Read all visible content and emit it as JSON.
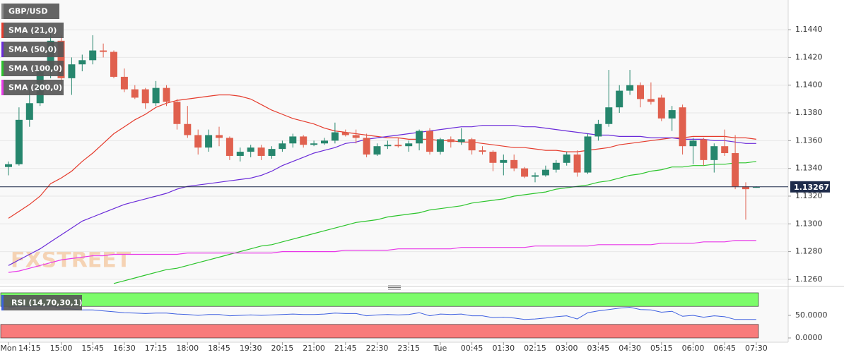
{
  "chart_data": [
    {
      "type": "candlestick",
      "title": "GBP/USD",
      "categories": [
        "Mon",
        null,
        "14:15",
        null,
        null,
        "15:00",
        null,
        null,
        "15:45",
        null,
        null,
        "16:30",
        null,
        null,
        "17:15",
        null,
        null,
        "18:00",
        null,
        null,
        "18:45",
        null,
        null,
        "19:30",
        null,
        null,
        "20:15",
        null,
        null,
        "21:00",
        null,
        null,
        "21:45",
        null,
        null,
        "22:30",
        null,
        null,
        "23:15",
        null,
        null,
        "Tue",
        null,
        null,
        "00:45",
        null,
        null,
        "01:30",
        null,
        null,
        "02:15",
        null,
        null,
        "03:00",
        null,
        null,
        "03:45",
        null,
        null,
        "04:30",
        null,
        null,
        "05:15",
        null,
        null,
        "06:00",
        null,
        null,
        "06:45",
        null,
        null,
        "07:30"
      ],
      "open": [
        1.1341,
        1.1343,
        1.1375,
        1.1387,
        1.141,
        1.1432,
        1.1405,
        1.1415,
        1.1418,
        1.1425,
        1.1424,
        1.1406,
        1.1397,
        1.1397,
        1.1387,
        1.1398,
        1.1388,
        1.1372,
        1.1364,
        1.1355,
        1.1364,
        1.1362,
        1.1349,
        1.1352,
        1.1355,
        1.1349,
        1.1354,
        1.1358,
        1.1363,
        1.1357,
        1.1358,
        1.136,
        1.1366,
        1.1364,
        1.1362,
        1.135,
        1.1356,
        1.1357,
        1.1356,
        1.1358,
        1.1367,
        1.1352,
        1.1361,
        1.1359,
        1.1361,
        1.1353,
        1.1352,
        1.1344,
        1.1346,
        1.134,
        1.1334,
        1.1335,
        1.1339,
        1.1344,
        1.135,
        1.1337,
        1.1363,
        1.1372,
        1.1384,
        1.1396,
        1.14,
        1.139,
        1.1391,
        1.1376,
        1.1384,
        1.1356,
        1.1361,
        1.1346,
        1.1356,
        1.1351,
        1.1327,
        1.1326
      ],
      "high": [
        1.1345,
        1.1384,
        1.14,
        1.1415,
        1.144,
        1.1436,
        1.142,
        1.1422,
        1.1436,
        1.143,
        1.1425,
        1.1412,
        1.14,
        1.1398,
        1.1403,
        1.14,
        1.139,
        1.1385,
        1.1368,
        1.1368,
        1.137,
        1.1363,
        1.1355,
        1.1357,
        1.1357,
        1.1356,
        1.136,
        1.1365,
        1.1364,
        1.136,
        1.1362,
        1.1373,
        1.1368,
        1.1368,
        1.1365,
        1.1358,
        1.136,
        1.1362,
        1.136,
        1.1368,
        1.1369,
        1.1362,
        1.1363,
        1.1369,
        1.1362,
        1.1356,
        1.1353,
        1.135,
        1.135,
        1.1341,
        1.1337,
        1.1342,
        1.1346,
        1.1352,
        1.1353,
        1.1365,
        1.1375,
        1.1411,
        1.14,
        1.1411,
        1.1402,
        1.1402,
        1.1393,
        1.1385,
        1.1386,
        1.1362,
        1.1362,
        1.1358,
        1.1368,
        1.1364,
        1.133,
        1.1327
      ],
      "low": [
        1.1335,
        1.1342,
        1.137,
        1.1385,
        1.1405,
        1.14,
        1.1393,
        1.141,
        1.1415,
        1.142,
        1.1405,
        1.1395,
        1.139,
        1.1383,
        1.1385,
        1.1385,
        1.1368,
        1.1362,
        1.135,
        1.1352,
        1.1356,
        1.1346,
        1.1345,
        1.1348,
        1.1346,
        1.1347,
        1.1352,
        1.1355,
        1.1355,
        1.1356,
        1.1357,
        1.1358,
        1.1363,
        1.1358,
        1.1348,
        1.1349,
        1.1354,
        1.1355,
        1.1352,
        1.1353,
        1.135,
        1.135,
        1.1355,
        1.1357,
        1.135,
        1.135,
        1.1338,
        1.1335,
        1.1338,
        1.1333,
        1.133,
        1.1334,
        1.1337,
        1.1342,
        1.1334,
        1.1336,
        1.136,
        1.137,
        1.138,
        1.1393,
        1.1384,
        1.1386,
        1.1374,
        1.1367,
        1.135,
        1.1343,
        1.1342,
        1.1337,
        1.1349,
        1.1325,
        1.1303,
        1.1326
      ],
      "close": [
        1.1343,
        1.1375,
        1.1387,
        1.141,
        1.1432,
        1.1405,
        1.1415,
        1.1418,
        1.1425,
        1.1424,
        1.1406,
        1.1397,
        1.1391,
        1.1387,
        1.1398,
        1.1388,
        1.1372,
        1.1364,
        1.1355,
        1.1364,
        1.1362,
        1.1349,
        1.1352,
        1.1355,
        1.1349,
        1.1354,
        1.1358,
        1.1363,
        1.1357,
        1.1358,
        1.136,
        1.1366,
        1.1364,
        1.1362,
        1.135,
        1.1356,
        1.1357,
        1.1356,
        1.1358,
        1.1367,
        1.1352,
        1.1361,
        1.1359,
        1.1361,
        1.1353,
        1.1352,
        1.1344,
        1.1346,
        1.134,
        1.1334,
        1.1335,
        1.1339,
        1.1344,
        1.135,
        1.1337,
        1.1363,
        1.1372,
        1.1384,
        1.1396,
        1.14,
        1.139,
        1.1388,
        1.1376,
        1.1382,
        1.1356,
        1.136,
        1.1346,
        1.1356,
        1.1351,
        1.1327,
        1.1325,
        1.13267
      ],
      "up_color": "#26866d",
      "down_color": "#e0604e",
      "lines": [
        {
          "name": "SMA (21,0)",
          "color": "#e53b2c",
          "values": [
            1.1304,
            1.1309,
            1.1314,
            1.132,
            1.1329,
            1.1333,
            1.1338,
            1.1345,
            1.1351,
            1.1358,
            1.1365,
            1.137,
            1.1375,
            1.1379,
            1.1384,
            1.1387,
            1.1389,
            1.139,
            1.1391,
            1.1392,
            1.1393,
            1.1393,
            1.1392,
            1.139,
            1.1386,
            1.1382,
            1.1379,
            1.1376,
            1.1374,
            1.1372,
            1.1369,
            1.1367,
            1.1366,
            1.1365,
            1.1364,
            1.1363,
            1.1362,
            1.1362,
            1.1361,
            1.1361,
            1.1361,
            1.136,
            1.136,
            1.1359,
            1.1359,
            1.1358,
            1.1357,
            1.1356,
            1.1355,
            1.1355,
            1.1354,
            1.1353,
            1.1353,
            1.1352,
            1.1352,
            1.1353,
            1.1354,
            1.1355,
            1.1357,
            1.1358,
            1.1359,
            1.136,
            1.1361,
            1.1362,
            1.1362,
            1.1363,
            1.1363,
            1.1363,
            1.1363,
            1.1362,
            1.1362,
            1.1361
          ]
        },
        {
          "name": "SMA (50,0)",
          "color": "#6a2bd9",
          "values": [
            1.127,
            1.1274,
            1.1278,
            1.1282,
            1.1287,
            1.1292,
            1.1297,
            1.1302,
            1.1305,
            1.1308,
            1.1311,
            1.1314,
            1.1316,
            1.1318,
            1.132,
            1.1322,
            1.1325,
            1.1327,
            1.1328,
            1.1329,
            1.133,
            1.1331,
            1.1332,
            1.1333,
            1.1335,
            1.1338,
            1.1342,
            1.1345,
            1.1348,
            1.1351,
            1.1353,
            1.1355,
            1.1358,
            1.1359,
            1.1361,
            1.1362,
            1.1363,
            1.1364,
            1.1365,
            1.1366,
            1.1367,
            1.1368,
            1.1369,
            1.137,
            1.137,
            1.1371,
            1.1371,
            1.1371,
            1.1371,
            1.137,
            1.137,
            1.1369,
            1.1368,
            1.1367,
            1.1366,
            1.1365,
            1.1364,
            1.1364,
            1.1363,
            1.1363,
            1.1363,
            1.1362,
            1.1362,
            1.1362,
            1.1361,
            1.1361,
            1.1361,
            1.136,
            1.136,
            1.1359,
            1.1358,
            1.1358
          ]
        },
        {
          "name": "SMA (100,0)",
          "color": "#2bc42b",
          "values": [
            null,
            null,
            null,
            null,
            null,
            null,
            null,
            null,
            null,
            null,
            1.1257,
            1.1259,
            1.1261,
            1.1263,
            1.1265,
            1.1267,
            1.1268,
            1.127,
            1.1272,
            1.1274,
            1.1276,
            1.1278,
            1.128,
            1.1282,
            1.1284,
            1.1285,
            1.1287,
            1.1289,
            1.1291,
            1.1293,
            1.1295,
            1.1297,
            1.1299,
            1.1301,
            1.1302,
            1.1303,
            1.1305,
            1.1306,
            1.1307,
            1.1308,
            1.131,
            1.1311,
            1.1312,
            1.1313,
            1.1315,
            1.1316,
            1.1317,
            1.1318,
            1.132,
            1.1321,
            1.1322,
            1.1323,
            1.1325,
            1.1326,
            1.1327,
            1.1328,
            1.133,
            1.1331,
            1.1333,
            1.1335,
            1.1336,
            1.1338,
            1.1339,
            1.1341,
            1.1341,
            1.1342,
            1.1342,
            1.1343,
            1.1343,
            1.1344,
            1.1344,
            1.1345
          ]
        },
        {
          "name": "SMA (200,0)",
          "color": "#e838e8",
          "values": [
            1.1265,
            1.1266,
            1.1268,
            1.127,
            1.1272,
            1.1274,
            1.1275,
            1.1276,
            1.1277,
            1.1277,
            1.1278,
            1.1278,
            1.1278,
            1.1278,
            1.1278,
            1.1278,
            1.1278,
            1.1279,
            1.1279,
            1.1279,
            1.1279,
            1.1279,
            1.1279,
            1.1279,
            1.1279,
            1.1279,
            1.128,
            1.128,
            1.128,
            1.128,
            1.128,
            1.128,
            1.1281,
            1.1281,
            1.1281,
            1.1281,
            1.1281,
            1.1282,
            1.1282,
            1.1282,
            1.1282,
            1.1282,
            1.1282,
            1.1283,
            1.1283,
            1.1283,
            1.1283,
            1.1283,
            1.1283,
            1.1283,
            1.1284,
            1.1284,
            1.1284,
            1.1284,
            1.1284,
            1.1284,
            1.1285,
            1.1285,
            1.1285,
            1.1285,
            1.1285,
            1.1285,
            1.1286,
            1.1286,
            1.1286,
            1.1286,
            1.1287,
            1.1287,
            1.1287,
            1.1288,
            1.1288,
            1.1288
          ]
        }
      ],
      "last_price": 1.13267,
      "ylim": [
        1.12564,
        1.14614
      ],
      "yticks": [
        {
          "value": 1.126,
          "label": "1.1260"
        },
        {
          "value": 1.128,
          "label": "1.1280"
        },
        {
          "value": 1.13,
          "label": "1.1300"
        },
        {
          "value": 1.132,
          "label": "1.1320"
        },
        {
          "value": 1.134,
          "label": "1.1340"
        },
        {
          "value": 1.136,
          "label": "1.1360"
        },
        {
          "value": 1.138,
          "label": "1.1380"
        },
        {
          "value": 1.14,
          "label": "1.1400"
        },
        {
          "value": 1.142,
          "label": "1.1420"
        },
        {
          "value": 1.144,
          "label": "1.1440"
        }
      ],
      "grid": true,
      "watermark": "FXSTREET"
    },
    {
      "type": "line",
      "series": [
        {
          "name": "RSI (14,70,30,1)",
          "color": "#3d5fe0",
          "values": [
            68,
            70,
            70,
            70,
            71,
            66,
            64,
            62,
            62,
            60,
            58,
            56,
            55,
            54,
            55,
            55,
            53,
            52,
            50,
            52,
            52,
            49,
            50,
            51,
            50,
            51,
            52,
            53,
            52,
            52,
            53,
            55,
            54,
            54,
            49,
            51,
            52,
            51,
            52,
            56,
            49,
            53,
            52,
            53,
            49,
            49,
            45,
            46,
            44,
            41,
            42,
            44,
            47,
            49,
            42,
            56,
            60,
            63,
            66,
            68,
            63,
            62,
            57,
            59,
            48,
            50,
            46,
            49,
            47,
            41,
            41,
            41
          ]
        }
      ],
      "overbought": 70,
      "oversold": 30,
      "overbought_color": "#7cfc6a",
      "oversold_color": "#f87b7b",
      "ylim": [
        0,
        107.8
      ],
      "yticks": [
        {
          "value": 50,
          "label": "50.0000"
        },
        {
          "value": 0,
          "label": "0.0000"
        }
      ],
      "grid": false
    }
  ]
}
